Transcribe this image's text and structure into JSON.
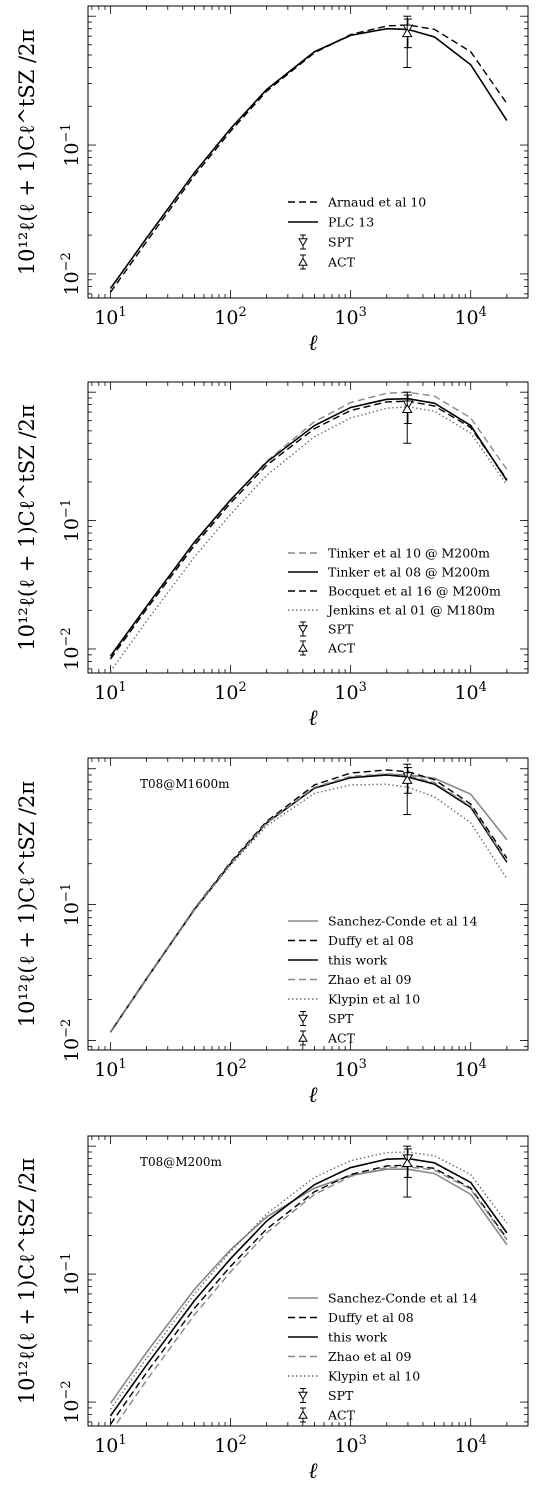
{
  "chart_data": [
    {
      "type": "line",
      "xscale": "log",
      "yscale": "log",
      "xlim": [
        6.5,
        30000
      ],
      "ylim": [
        0.0065,
        1.2
      ],
      "xticks": [
        {
          "v": 10,
          "base": "10",
          "exp": "1"
        },
        {
          "v": 100,
          "base": "10",
          "exp": "2"
        },
        {
          "v": 1000,
          "base": "10",
          "exp": "3"
        },
        {
          "v": 10000,
          "base": "10",
          "exp": "4"
        }
      ],
      "yticks": [
        {
          "v": 0.01,
          "base": "10",
          "exp": "−2"
        },
        {
          "v": 0.1,
          "base": "10",
          "exp": "−1"
        }
      ],
      "xlabel": "ℓ",
      "ylabel": "10¹²ℓ(ℓ + 1)Cℓ^tSZ /2π",
      "annotation": "",
      "legend": "lower-right",
      "series": [
        {
          "name": "Arnaud et al 10",
          "style": "dashed",
          "color": "#000000",
          "x": [
            10,
            20,
            50,
            100,
            200,
            500,
            1000,
            2000,
            3000,
            5000,
            10000,
            20000
          ],
          "y": [
            0.0072,
            0.0178,
            0.058,
            0.128,
            0.262,
            0.52,
            0.72,
            0.84,
            0.855,
            0.79,
            0.53,
            0.21
          ]
        },
        {
          "name": "PLC 13",
          "style": "solid",
          "color": "#000000",
          "x": [
            10,
            20,
            50,
            100,
            200,
            500,
            1000,
            2000,
            3000,
            5000,
            10000,
            20000
          ],
          "y": [
            0.0077,
            0.019,
            0.061,
            0.134,
            0.27,
            0.53,
            0.71,
            0.8,
            0.79,
            0.69,
            0.42,
            0.155
          ]
        }
      ],
      "data_points": [
        {
          "name": "SPT",
          "marker": "triangle-down",
          "x": 3000,
          "y": 0.8,
          "ylow": 0.57,
          "yhigh": 0.95
        },
        {
          "name": "ACT",
          "marker": "triangle-up",
          "x": 2960,
          "y": 0.74,
          "ylow": 0.4,
          "yhigh": 1.0
        }
      ]
    },
    {
      "type": "line",
      "xscale": "log",
      "yscale": "log",
      "xlim": [
        6.5,
        30000
      ],
      "ylim": [
        0.0065,
        1.2
      ],
      "xticks": [
        {
          "v": 10,
          "base": "10",
          "exp": "1"
        },
        {
          "v": 100,
          "base": "10",
          "exp": "2"
        },
        {
          "v": 1000,
          "base": "10",
          "exp": "3"
        },
        {
          "v": 10000,
          "base": "10",
          "exp": "4"
        }
      ],
      "yticks": [
        {
          "v": 0.01,
          "base": "10",
          "exp": "−2"
        },
        {
          "v": 0.1,
          "base": "10",
          "exp": "−1"
        }
      ],
      "xlabel": "ℓ",
      "ylabel": "10¹²ℓ(ℓ + 1)Cℓ^tSZ /2π",
      "annotation": "",
      "legend": "lower-right",
      "series": [
        {
          "name": "Tinker et al 10 @ M200m",
          "style": "dashed",
          "color": "#888888",
          "x": [
            10,
            20,
            50,
            100,
            200,
            500,
            1000,
            2000,
            3000,
            5000,
            10000,
            20000
          ],
          "y": [
            0.0083,
            0.0205,
            0.066,
            0.143,
            0.29,
            0.59,
            0.83,
            0.98,
            1.0,
            0.93,
            0.63,
            0.25
          ]
        },
        {
          "name": "Tinker et al 08 @ M200m",
          "style": "solid",
          "color": "#000000",
          "x": [
            10,
            20,
            50,
            100,
            200,
            500,
            1000,
            2000,
            3000,
            5000,
            10000,
            20000
          ],
          "y": [
            0.0088,
            0.0215,
            0.068,
            0.145,
            0.285,
            0.55,
            0.76,
            0.88,
            0.89,
            0.82,
            0.55,
            0.205
          ]
        },
        {
          "name": "Bocquet et al 16 @ M200m",
          "style": "dashed",
          "color": "#000000",
          "x": [
            10,
            20,
            50,
            100,
            200,
            500,
            1000,
            2000,
            3000,
            5000,
            10000,
            20000
          ],
          "y": [
            0.0084,
            0.0205,
            0.064,
            0.137,
            0.27,
            0.52,
            0.72,
            0.84,
            0.85,
            0.78,
            0.53,
            0.21
          ]
        },
        {
          "name": "Jenkins et al 01 @ M180m",
          "style": "dotted",
          "color": "#666666",
          "x": [
            10,
            20,
            50,
            100,
            200,
            500,
            1000,
            2000,
            3000,
            5000,
            10000,
            20000
          ],
          "y": [
            0.0067,
            0.0165,
            0.052,
            0.112,
            0.225,
            0.45,
            0.63,
            0.75,
            0.77,
            0.71,
            0.48,
            0.19
          ]
        }
      ],
      "data_points": [
        {
          "name": "SPT",
          "marker": "triangle-down",
          "x": 3000,
          "y": 0.8,
          "ylow": 0.57,
          "yhigh": 0.95
        },
        {
          "name": "ACT",
          "marker": "triangle-up",
          "x": 2960,
          "y": 0.74,
          "ylow": 0.4,
          "yhigh": 1.0
        }
      ]
    },
    {
      "type": "line",
      "xscale": "log",
      "yscale": "log",
      "xlim": [
        6.5,
        30000
      ],
      "ylim": [
        0.0085,
        1.2
      ],
      "xticks": [
        {
          "v": 10,
          "base": "10",
          "exp": "1"
        },
        {
          "v": 100,
          "base": "10",
          "exp": "2"
        },
        {
          "v": 1000,
          "base": "10",
          "exp": "3"
        },
        {
          "v": 10000,
          "base": "10",
          "exp": "4"
        }
      ],
      "yticks": [
        {
          "v": 0.01,
          "base": "10",
          "exp": "−2"
        },
        {
          "v": 0.1,
          "base": "10",
          "exp": "−1"
        }
      ],
      "xlabel": "ℓ",
      "ylabel": "10¹²ℓ(ℓ + 1)Cℓ^tSZ /2π",
      "annotation": "T08@M1600m",
      "legend": "lower-right",
      "series": [
        {
          "name": "Sanchez-Conde et al 14",
          "style": "solid",
          "color": "#888888",
          "x": [
            10,
            20,
            50,
            100,
            200,
            500,
            1000,
            2000,
            3000,
            5000,
            10000,
            20000
          ],
          "y": [
            0.0115,
            0.0285,
            0.092,
            0.2,
            0.4,
            0.72,
            0.86,
            0.91,
            0.9,
            0.85,
            0.65,
            0.3
          ]
        },
        {
          "name": "Duffy et al 08",
          "style": "dashed",
          "color": "#000000",
          "x": [
            10,
            20,
            50,
            100,
            200,
            500,
            1000,
            2000,
            3000,
            5000,
            10000,
            20000
          ],
          "y": [
            0.0115,
            0.0285,
            0.093,
            0.205,
            0.41,
            0.76,
            0.93,
            0.98,
            0.95,
            0.83,
            0.55,
            0.22
          ]
        },
        {
          "name": "this work",
          "style": "solid",
          "color": "#000000",
          "x": [
            10,
            20,
            50,
            100,
            200,
            500,
            1000,
            2000,
            3000,
            5000,
            10000,
            20000
          ],
          "y": [
            0.0115,
            0.0285,
            0.092,
            0.2,
            0.4,
            0.72,
            0.86,
            0.9,
            0.87,
            0.77,
            0.52,
            0.205
          ]
        },
        {
          "name": "Zhao et al 09",
          "style": "dashed",
          "color": "#888888",
          "x": [
            10,
            20,
            50,
            100,
            200,
            500,
            1000,
            2000,
            3000,
            5000,
            10000,
            20000
          ],
          "y": [
            0.0115,
            0.0285,
            0.092,
            0.2,
            0.4,
            0.73,
            0.88,
            0.92,
            0.89,
            0.79,
            0.53,
            0.21
          ]
        },
        {
          "name": "Klypin et al 10",
          "style": "dotted",
          "color": "#666666",
          "x": [
            10,
            20,
            50,
            100,
            200,
            500,
            1000,
            2000,
            3000,
            5000,
            10000,
            20000
          ],
          "y": [
            0.0115,
            0.0285,
            0.091,
            0.195,
            0.38,
            0.66,
            0.76,
            0.77,
            0.73,
            0.62,
            0.4,
            0.155
          ]
        }
      ],
      "data_points": [
        {
          "name": "SPT",
          "marker": "triangle-down",
          "x": 3000,
          "y": 0.88,
          "ylow": 0.66,
          "yhigh": 1.02
        },
        {
          "name": "ACT",
          "marker": "triangle-up",
          "x": 2960,
          "y": 0.83,
          "ylow": 0.46,
          "yhigh": 1.08
        }
      ]
    },
    {
      "type": "line",
      "xscale": "log",
      "yscale": "log",
      "xlim": [
        6.5,
        30000
      ],
      "ylim": [
        0.0065,
        1.2
      ],
      "xticks": [
        {
          "v": 10,
          "base": "10",
          "exp": "1"
        },
        {
          "v": 100,
          "base": "10",
          "exp": "2"
        },
        {
          "v": 1000,
          "base": "10",
          "exp": "3"
        },
        {
          "v": 10000,
          "base": "10",
          "exp": "4"
        }
      ],
      "yticks": [
        {
          "v": 0.01,
          "base": "10",
          "exp": "−2"
        },
        {
          "v": 0.1,
          "base": "10",
          "exp": "−1"
        }
      ],
      "xlabel": "ℓ",
      "ylabel": "10¹²ℓ(ℓ + 1)Cℓ^tSZ /2π",
      "annotation": "T08@M200m",
      "legend": "lower-right",
      "series": [
        {
          "name": "Sanchez-Conde et al 14",
          "style": "solid",
          "color": "#888888",
          "x": [
            10,
            20,
            50,
            100,
            200,
            500,
            1000,
            2000,
            3000,
            5000,
            10000,
            20000
          ],
          "y": [
            0.0098,
            0.0245,
            0.076,
            0.155,
            0.28,
            0.47,
            0.59,
            0.66,
            0.66,
            0.61,
            0.42,
            0.17
          ]
        },
        {
          "name": "Duffy et al 08",
          "style": "dashed",
          "color": "#000000",
          "x": [
            10,
            20,
            50,
            100,
            200,
            500,
            1000,
            2000,
            3000,
            5000,
            10000,
            20000
          ],
          "y": [
            0.0067,
            0.017,
            0.054,
            0.115,
            0.225,
            0.44,
            0.6,
            0.7,
            0.71,
            0.67,
            0.47,
            0.19
          ]
        },
        {
          "name": "this work",
          "style": "solid",
          "color": "#000000",
          "x": [
            10,
            20,
            50,
            100,
            200,
            500,
            1000,
            2000,
            3000,
            5000,
            10000,
            20000
          ],
          "y": [
            0.0078,
            0.0195,
            0.062,
            0.132,
            0.26,
            0.5,
            0.68,
            0.79,
            0.8,
            0.74,
            0.52,
            0.21
          ]
        },
        {
          "name": "Zhao et al 09",
          "style": "dashed",
          "color": "#888888",
          "x": [
            10,
            20,
            50,
            100,
            200,
            500,
            1000,
            2000,
            3000,
            5000,
            10000,
            20000
          ],
          "y": [
            0.0058,
            0.0148,
            0.048,
            0.104,
            0.21,
            0.42,
            0.58,
            0.68,
            0.69,
            0.65,
            0.46,
            0.185
          ]
        },
        {
          "name": "Klypin et al 10",
          "style": "dotted",
          "color": "#666666",
          "x": [
            10,
            20,
            50,
            100,
            200,
            500,
            1000,
            2000,
            3000,
            5000,
            10000,
            20000
          ],
          "y": [
            0.0088,
            0.022,
            0.07,
            0.15,
            0.295,
            0.57,
            0.77,
            0.89,
            0.9,
            0.84,
            0.6,
            0.25
          ]
        }
      ],
      "data_points": [
        {
          "name": "SPT",
          "marker": "triangle-down",
          "x": 3000,
          "y": 0.8,
          "ylow": 0.57,
          "yhigh": 0.95
        },
        {
          "name": "ACT",
          "marker": "triangle-up",
          "x": 2960,
          "y": 0.74,
          "ylow": 0.4,
          "yhigh": 1.0
        }
      ]
    }
  ]
}
